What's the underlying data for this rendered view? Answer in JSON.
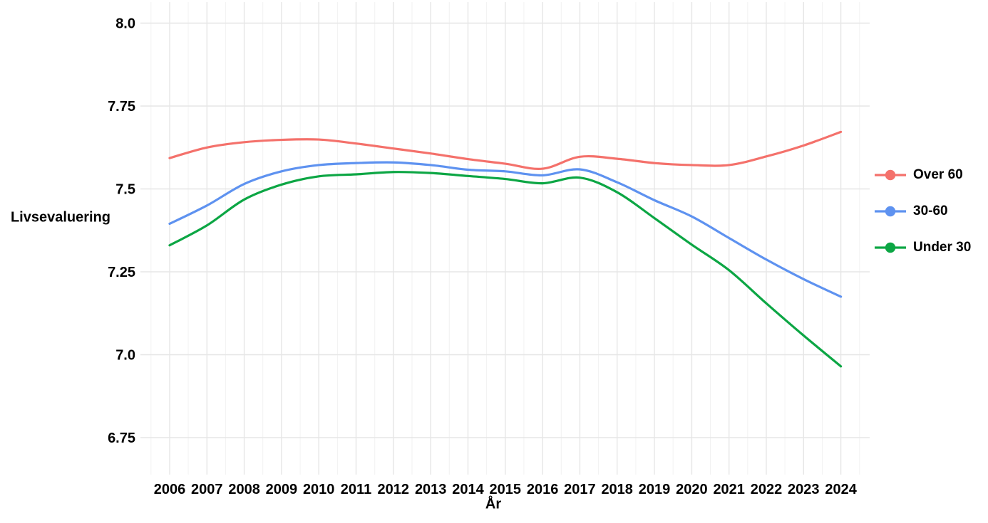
{
  "chart_data": {
    "type": "line",
    "title": "",
    "xlabel": "År",
    "ylabel": "Livsevaluering",
    "x": [
      2006,
      2007,
      2008,
      2009,
      2010,
      2011,
      2012,
      2013,
      2014,
      2015,
      2016,
      2017,
      2018,
      2019,
      2020,
      2021,
      2022,
      2023,
      2024
    ],
    "x_tick_labels": [
      "2006",
      "2007",
      "2008",
      "2009",
      "2010",
      "2011",
      "2012",
      "2013",
      "2014",
      "2015",
      "2016",
      "2017",
      "2018",
      "2019",
      "2020",
      "2021",
      "2022",
      "2023",
      "2024"
    ],
    "y_ticks": [
      {
        "value": 6.75,
        "label": "6.75"
      },
      {
        "value": 7.0,
        "label": "7.0"
      },
      {
        "value": 7.25,
        "label": "7.25"
      },
      {
        "value": 7.5,
        "label": "7.5"
      },
      {
        "value": 7.75,
        "label": "7.75"
      },
      {
        "value": 8.0,
        "label": "8.0"
      }
    ],
    "series": [
      {
        "name": "Over 60",
        "color": "#f4716b",
        "values": [
          7.593,
          7.625,
          7.641,
          7.648,
          7.649,
          7.637,
          7.622,
          7.607,
          7.59,
          7.576,
          7.561,
          7.597,
          7.591,
          7.578,
          7.572,
          7.572,
          7.598,
          7.631,
          7.672
        ]
      },
      {
        "name": "30-60",
        "color": "#5e92f0",
        "values": [
          7.395,
          7.45,
          7.515,
          7.553,
          7.572,
          7.578,
          7.58,
          7.572,
          7.558,
          7.553,
          7.541,
          7.559,
          7.52,
          7.466,
          7.417,
          7.352,
          7.287,
          7.228,
          7.175
        ]
      },
      {
        "name": "Under 30",
        "color": "#0ca644",
        "values": [
          7.33,
          7.39,
          7.468,
          7.513,
          7.538,
          7.544,
          7.551,
          7.548,
          7.539,
          7.53,
          7.517,
          7.534,
          7.49,
          7.412,
          7.332,
          7.255,
          7.155,
          7.058,
          6.965
        ]
      }
    ],
    "x_range": [
      2005.217,
      2024.772
    ],
    "y_range": [
      6.6385,
      8.0633
    ],
    "grid": {
      "horizontal_major": true,
      "vertical_major": true,
      "vertical_minor_step": 0.5,
      "major_color": "#e6e6e6",
      "minor_color": "#f2f2f2"
    },
    "legend_position": "right",
    "line_width": 3.2,
    "background": "#ffffff",
    "text_color": "#000000",
    "tick_font_size": 20
  }
}
